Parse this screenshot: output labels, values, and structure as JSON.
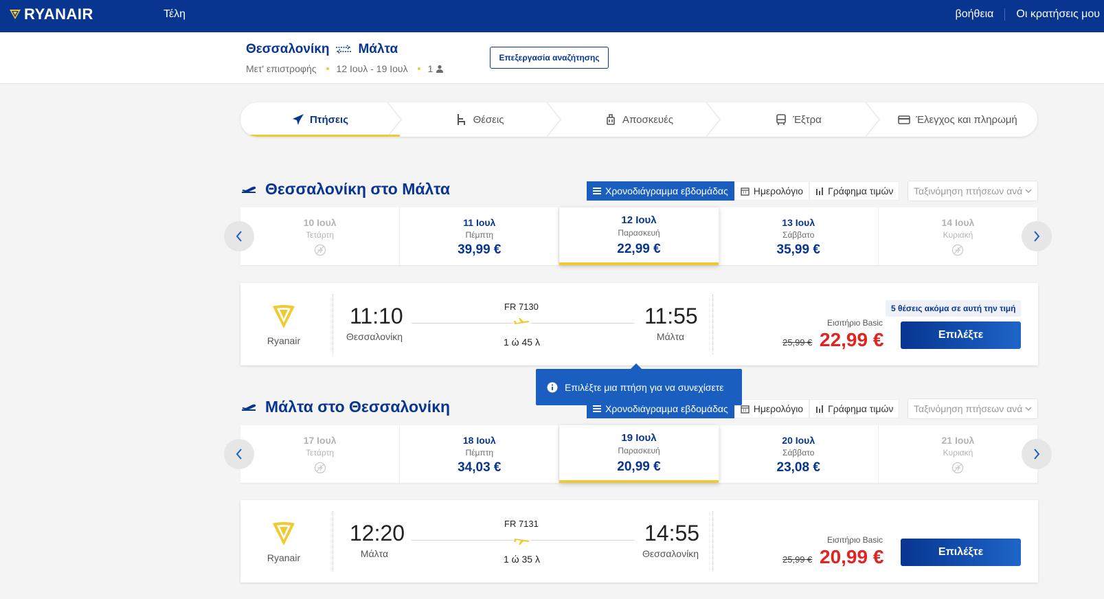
{
  "header": {
    "logo_text": "RYANAIR",
    "fees_link": "Τέλη",
    "help_link": "βοήθεια",
    "bookings_link": "Οι κρατήσεις μου"
  },
  "summary": {
    "origin": "Θεσσαλονίκη",
    "destination": "Μάλτα",
    "trip_type": "Μετ' επιστροφής",
    "dates": "12 Ιουλ - 19 Ιουλ",
    "passengers": "1",
    "edit_label": "Επεξεργασία αναζήτησης"
  },
  "stepper": {
    "steps": [
      {
        "label": "Πτήσεις",
        "icon": "plane-icon",
        "active": true
      },
      {
        "label": "Θέσεις",
        "icon": "seat-icon",
        "active": false
      },
      {
        "label": "Αποσκευές",
        "icon": "luggage-icon",
        "active": false
      },
      {
        "label": "Έξτρα",
        "icon": "bus-icon",
        "active": false
      },
      {
        "label": "Έλεγχος και πληρωμή",
        "icon": "card-icon",
        "active": false
      }
    ]
  },
  "view_tabs": {
    "week": "Χρονοδιάγραμμα εβδομάδας",
    "calendar": "Ημερολόγιο",
    "chart": "Γράφημα τιμών",
    "sort_placeholder": "Ταξινόμηση πτήσεων ανά"
  },
  "outbound": {
    "title": "Θεσσαλονίκη στο Μάλτα",
    "dates": [
      {
        "date": "10 Ιουλ",
        "day": "Τετάρτη",
        "price": "",
        "status": "disabled"
      },
      {
        "date": "11 Ιουλ",
        "day": "Πέμπτη",
        "price": "39,99 €",
        "status": "available"
      },
      {
        "date": "12 Ιουλ",
        "day": "Παρασκευή",
        "price": "22,99 €",
        "status": "selected"
      },
      {
        "date": "13 Ιουλ",
        "day": "Σάββατο",
        "price": "35,99 €",
        "status": "available"
      },
      {
        "date": "14 Ιουλ",
        "day": "Κυριακή",
        "price": "",
        "status": "disabled"
      }
    ],
    "flight": {
      "airline": "Ryanair",
      "dep_time": "11:10",
      "dep_city": "Θεσσαλονίκη",
      "number": "FR 7130",
      "duration": "1 ώ 45 λ",
      "arr_time": "11:55",
      "arr_city": "Μάλτα",
      "seats_left": "5 θέσεις ακόμα σε αυτή την τιμή",
      "ticket_type": "Εισιτήριο Basic",
      "old_price": "25,99 €",
      "price": "22,99 €",
      "select_label": "Επιλέξτε"
    }
  },
  "tooltip": {
    "text": "Επιλέξτε μια πτήση για να συνεχίσετε"
  },
  "inbound": {
    "title": "Μάλτα στο Θεσσαλονίκη",
    "dates": [
      {
        "date": "17 Ιουλ",
        "day": "Τετάρτη",
        "price": "",
        "status": "disabled"
      },
      {
        "date": "18 Ιουλ",
        "day": "Πέμπτη",
        "price": "34,03 €",
        "status": "available"
      },
      {
        "date": "19 Ιουλ",
        "day": "Παρασκευή",
        "price": "20,99 €",
        "status": "selected"
      },
      {
        "date": "20 Ιουλ",
        "day": "Σάββατο",
        "price": "23,08 €",
        "status": "available"
      },
      {
        "date": "21 Ιουλ",
        "day": "Κυριακή",
        "price": "",
        "status": "disabled"
      }
    ],
    "flight": {
      "airline": "Ryanair",
      "dep_time": "12:20",
      "dep_city": "Μάλτα",
      "number": "FR 7131",
      "duration": "1 ώ 35 λ",
      "arr_time": "14:55",
      "arr_city": "Θεσσαλονίκη",
      "ticket_type": "Εισιτήριο Basic",
      "old_price": "25,99 €",
      "price": "20,99 €",
      "select_label": "Επιλέξτε"
    }
  },
  "colors": {
    "brand_blue": "#073590",
    "accent_yellow": "#f1c933",
    "price_red": "#e32222",
    "action_blue": "#1a5fbf"
  }
}
